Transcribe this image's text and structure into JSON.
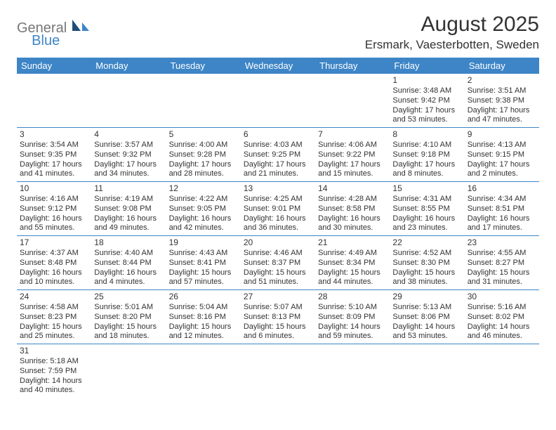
{
  "logo": {
    "general": "General",
    "blue": "Blue"
  },
  "title": "August 2025",
  "location": "Ersmark, Vaesterbotten, Sweden",
  "colors": {
    "accent": "#3d85c6",
    "text": "#333333",
    "logo_gray": "#777777"
  },
  "day_headers": [
    "Sunday",
    "Monday",
    "Tuesday",
    "Wednesday",
    "Thursday",
    "Friday",
    "Saturday"
  ],
  "weeks": [
    [
      null,
      null,
      null,
      null,
      null,
      {
        "d": "1",
        "sr": "3:48 AM",
        "ss": "9:42 PM",
        "dl": "17 hours and 53 minutes."
      },
      {
        "d": "2",
        "sr": "3:51 AM",
        "ss": "9:38 PM",
        "dl": "17 hours and 47 minutes."
      }
    ],
    [
      {
        "d": "3",
        "sr": "3:54 AM",
        "ss": "9:35 PM",
        "dl": "17 hours and 41 minutes."
      },
      {
        "d": "4",
        "sr": "3:57 AM",
        "ss": "9:32 PM",
        "dl": "17 hours and 34 minutes."
      },
      {
        "d": "5",
        "sr": "4:00 AM",
        "ss": "9:28 PM",
        "dl": "17 hours and 28 minutes."
      },
      {
        "d": "6",
        "sr": "4:03 AM",
        "ss": "9:25 PM",
        "dl": "17 hours and 21 minutes."
      },
      {
        "d": "7",
        "sr": "4:06 AM",
        "ss": "9:22 PM",
        "dl": "17 hours and 15 minutes."
      },
      {
        "d": "8",
        "sr": "4:10 AM",
        "ss": "9:18 PM",
        "dl": "17 hours and 8 minutes."
      },
      {
        "d": "9",
        "sr": "4:13 AM",
        "ss": "9:15 PM",
        "dl": "17 hours and 2 minutes."
      }
    ],
    [
      {
        "d": "10",
        "sr": "4:16 AM",
        "ss": "9:12 PM",
        "dl": "16 hours and 55 minutes."
      },
      {
        "d": "11",
        "sr": "4:19 AM",
        "ss": "9:08 PM",
        "dl": "16 hours and 49 minutes."
      },
      {
        "d": "12",
        "sr": "4:22 AM",
        "ss": "9:05 PM",
        "dl": "16 hours and 42 minutes."
      },
      {
        "d": "13",
        "sr": "4:25 AM",
        "ss": "9:01 PM",
        "dl": "16 hours and 36 minutes."
      },
      {
        "d": "14",
        "sr": "4:28 AM",
        "ss": "8:58 PM",
        "dl": "16 hours and 30 minutes."
      },
      {
        "d": "15",
        "sr": "4:31 AM",
        "ss": "8:55 PM",
        "dl": "16 hours and 23 minutes."
      },
      {
        "d": "16",
        "sr": "4:34 AM",
        "ss": "8:51 PM",
        "dl": "16 hours and 17 minutes."
      }
    ],
    [
      {
        "d": "17",
        "sr": "4:37 AM",
        "ss": "8:48 PM",
        "dl": "16 hours and 10 minutes."
      },
      {
        "d": "18",
        "sr": "4:40 AM",
        "ss": "8:44 PM",
        "dl": "16 hours and 4 minutes."
      },
      {
        "d": "19",
        "sr": "4:43 AM",
        "ss": "8:41 PM",
        "dl": "15 hours and 57 minutes."
      },
      {
        "d": "20",
        "sr": "4:46 AM",
        "ss": "8:37 PM",
        "dl": "15 hours and 51 minutes."
      },
      {
        "d": "21",
        "sr": "4:49 AM",
        "ss": "8:34 PM",
        "dl": "15 hours and 44 minutes."
      },
      {
        "d": "22",
        "sr": "4:52 AM",
        "ss": "8:30 PM",
        "dl": "15 hours and 38 minutes."
      },
      {
        "d": "23",
        "sr": "4:55 AM",
        "ss": "8:27 PM",
        "dl": "15 hours and 31 minutes."
      }
    ],
    [
      {
        "d": "24",
        "sr": "4:58 AM",
        "ss": "8:23 PM",
        "dl": "15 hours and 25 minutes."
      },
      {
        "d": "25",
        "sr": "5:01 AM",
        "ss": "8:20 PM",
        "dl": "15 hours and 18 minutes."
      },
      {
        "d": "26",
        "sr": "5:04 AM",
        "ss": "8:16 PM",
        "dl": "15 hours and 12 minutes."
      },
      {
        "d": "27",
        "sr": "5:07 AM",
        "ss": "8:13 PM",
        "dl": "15 hours and 6 minutes."
      },
      {
        "d": "28",
        "sr": "5:10 AM",
        "ss": "8:09 PM",
        "dl": "14 hours and 59 minutes."
      },
      {
        "d": "29",
        "sr": "5:13 AM",
        "ss": "8:06 PM",
        "dl": "14 hours and 53 minutes."
      },
      {
        "d": "30",
        "sr": "5:16 AM",
        "ss": "8:02 PM",
        "dl": "14 hours and 46 minutes."
      }
    ],
    [
      {
        "d": "31",
        "sr": "5:18 AM",
        "ss": "7:59 PM",
        "dl": "14 hours and 40 minutes."
      },
      null,
      null,
      null,
      null,
      null,
      null
    ]
  ],
  "labels": {
    "sunrise": "Sunrise: ",
    "sunset": "Sunset: ",
    "daylight": "Daylight: "
  }
}
